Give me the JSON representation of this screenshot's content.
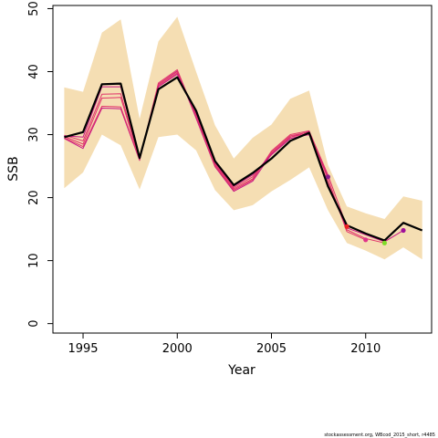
{
  "chart_data": {
    "type": "line",
    "title": "",
    "xlabel": "Year",
    "ylabel": "SSB",
    "xlim": [
      1993.4,
      2013.5
    ],
    "ylim": [
      -1.5,
      50.5
    ],
    "xticks": [
      1995,
      2000,
      2005,
      2010
    ],
    "yticks": [
      0,
      10,
      20,
      30,
      40,
      50
    ],
    "grid": false,
    "legend": "none",
    "colors": {
      "band": "#f5deb3",
      "main": "#000000",
      "retro": "#e0336a",
      "retro_alt": "#c71585"
    },
    "confidence_band": {
      "x": [
        1994,
        1995,
        1996,
        1997,
        1998,
        1999,
        2000,
        2001,
        2002,
        2003,
        2004,
        2005,
        2006,
        2007,
        2008,
        2009,
        2010,
        2011,
        2012,
        2013
      ],
      "upper": [
        37.5,
        36.8,
        46.2,
        48.3,
        32.5,
        44.8,
        48.7,
        40.0,
        31.5,
        26.2,
        29.5,
        31.6,
        35.7,
        37.0,
        25.2,
        18.6,
        17.5,
        16.6,
        20.2,
        19.5
      ],
      "lower": [
        21.5,
        24.0,
        30.0,
        28.3,
        21.3,
        29.6,
        30.0,
        27.5,
        21.2,
        18.0,
        18.8,
        21.0,
        22.8,
        24.8,
        18.0,
        12.8,
        11.6,
        10.2,
        12.1,
        10.2
      ]
    },
    "series": [
      {
        "x": [
          1994,
          1995,
          1996,
          1997,
          1998,
          1999,
          2000,
          2001,
          2002,
          2003,
          2004,
          2005,
          2006,
          2007,
          2008,
          2009,
          2010,
          2011,
          2012,
          2013
        ],
        "values": [
          29.6,
          30.4,
          38.0,
          38.1,
          26.3,
          37.2,
          39.1,
          33.8,
          25.8,
          22.0,
          23.9,
          26.2,
          29.0,
          30.3,
          21.8,
          15.6,
          14.3,
          13.2,
          16.0,
          14.8
        ],
        "color": "#000000",
        "width": 2.2,
        "end_marker": false
      },
      {
        "x": [
          1994,
          1995,
          1996,
          1997,
          1998,
          1999,
          2000,
          2001,
          2002,
          2003,
          2004,
          2005,
          2006,
          2007,
          2008,
          2009,
          2010,
          2011,
          2012
        ],
        "values": [
          29.8,
          29.6,
          37.6,
          37.6,
          26.2,
          37.6,
          39.6,
          33.5,
          25.6,
          21.8,
          23.6,
          26.8,
          29.4,
          30.0,
          21.9,
          15.2,
          14.1,
          13.0,
          14.8
        ],
        "color": "#c71585",
        "width": 1,
        "end_marker": true,
        "marker_color": "#a0109a"
      },
      {
        "x": [
          1994,
          1995,
          1996,
          1997,
          1998,
          1999,
          2000,
          2001,
          2002,
          2003,
          2004,
          2005,
          2006,
          2007,
          2008,
          2009,
          2010,
          2011
        ],
        "values": [
          29.9,
          29.0,
          36.4,
          36.5,
          26.1,
          37.8,
          39.8,
          33.3,
          25.4,
          21.6,
          23.3,
          27.0,
          29.6,
          30.2,
          22.4,
          14.9,
          13.5,
          12.8
        ],
        "color": "#e0336a",
        "width": 1,
        "end_marker": true,
        "marker_color": "#7fdc28"
      },
      {
        "x": [
          1994,
          1995,
          1996,
          1997,
          1998,
          1999,
          2000,
          2001,
          2002,
          2003,
          2004,
          2005,
          2006,
          2007,
          2008,
          2009,
          2010
        ],
        "values": [
          29.7,
          28.5,
          35.8,
          35.9,
          26.0,
          38.0,
          40.0,
          33.0,
          25.2,
          21.4,
          23.0,
          27.2,
          29.8,
          30.4,
          23.0,
          14.6,
          13.3
        ],
        "color": "#e0336a",
        "width": 1,
        "end_marker": true,
        "marker_color": "#e0338a"
      },
      {
        "x": [
          1994,
          1995,
          1996,
          1997,
          1998,
          1999,
          2000,
          2001,
          2002,
          2003,
          2004,
          2005,
          2006,
          2007,
          2008,
          2009
        ],
        "values": [
          29.5,
          28.1,
          34.5,
          34.4,
          26.0,
          38.2,
          40.3,
          32.9,
          25.0,
          21.2,
          22.8,
          27.4,
          30.0,
          30.6,
          23.6,
          15.4
        ],
        "color": "#e0336a",
        "width": 1,
        "end_marker": true,
        "marker_color": "#ee2020"
      },
      {
        "x": [
          1994,
          1995,
          1996,
          1997,
          1998,
          1999,
          2000,
          2001,
          2002,
          2003,
          2004,
          2005,
          2006,
          2007,
          2008
        ],
        "values": [
          29.4,
          27.8,
          34.2,
          34.1,
          25.9,
          38.0,
          40.1,
          32.6,
          24.9,
          21.0,
          22.6,
          26.9,
          29.6,
          30.5,
          23.3
        ],
        "color": "#c71585",
        "width": 1,
        "end_marker": true,
        "marker_color": "#8b1a8b"
      }
    ],
    "footer_note": "stockassessment.org, WBcod_2015_short, r4485"
  }
}
